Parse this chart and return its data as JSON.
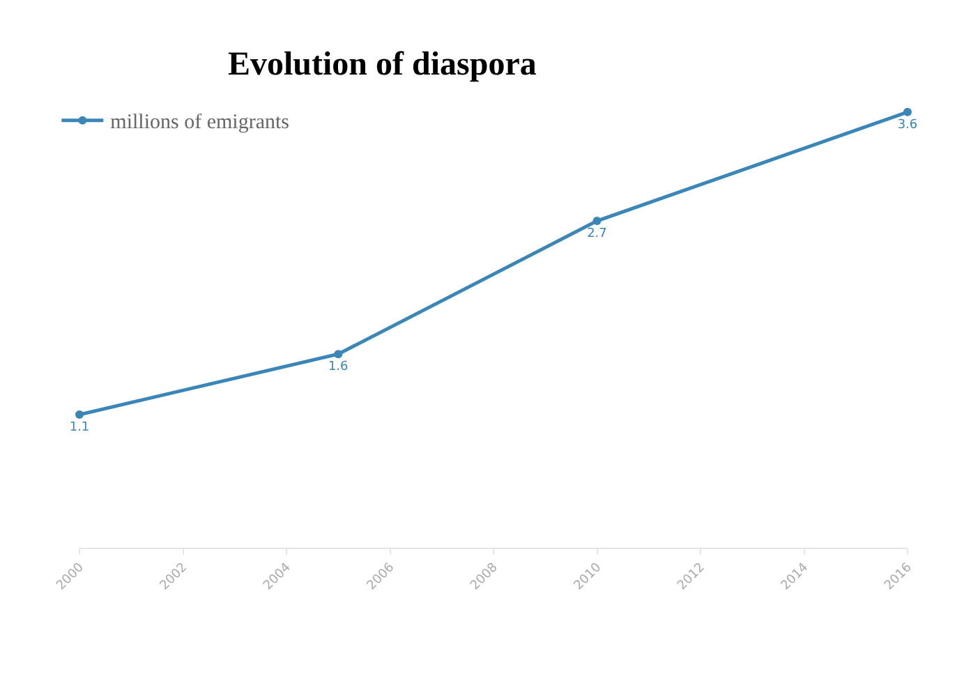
{
  "chart_data": {
    "type": "line",
    "title": "Evolution of diaspora",
    "x": [
      2000,
      2005,
      2010,
      2016
    ],
    "series": [
      {
        "name": "millions of emigrants",
        "color": "#3a86b8",
        "values": [
          1.1,
          1.6,
          2.7,
          3.6
        ]
      }
    ],
    "xlim": [
      2000,
      2016
    ],
    "xticks": [
      2000,
      2002,
      2004,
      2006,
      2008,
      2010,
      2012,
      2014,
      2016
    ],
    "tick_labels": "x",
    "data_labels": true,
    "legend": "top left",
    "marker": "circle",
    "line_style": "solid"
  }
}
